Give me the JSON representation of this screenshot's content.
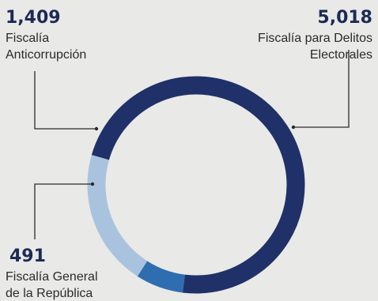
{
  "chart_data": {
    "type": "pie",
    "donut": true,
    "series": [
      {
        "value": 5018,
        "value_label": "5,018",
        "label_lines": [
          "Fiscalía para Delitos",
          "Electorales"
        ],
        "color": "#1f3168"
      },
      {
        "value": 491,
        "value_label": "491",
        "label_lines": [
          "Fiscalía General",
          "de la República"
        ],
        "color": "#2f6db1"
      },
      {
        "value": 1409,
        "value_label": "1,409",
        "label_lines": [
          "Fiscalía",
          "Anticorrupción"
        ],
        "color": "#a9c3df"
      }
    ]
  }
}
